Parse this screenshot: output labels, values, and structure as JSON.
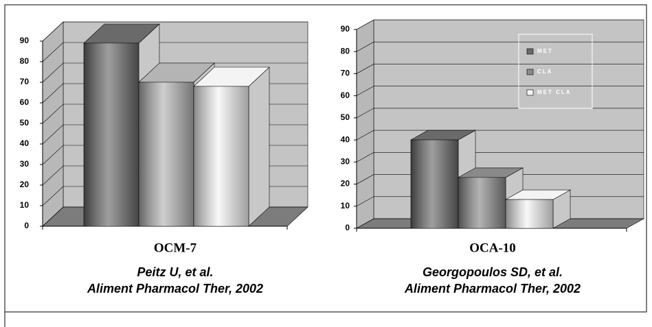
{
  "chart_data": [
    {
      "type": "bar3d",
      "categories": [
        "OCM-7"
      ],
      "series": [
        {
          "color": "#6a6a6a",
          "values": [
            89
          ]
        },
        {
          "color": "#b4b4b4",
          "values": [
            70
          ]
        },
        {
          "color": "#f4f4f4",
          "values": [
            68
          ]
        }
      ],
      "ylim": [
        0,
        90
      ],
      "yticks": [
        0,
        10,
        20,
        30,
        40,
        50,
        60,
        70,
        80,
        90
      ],
      "grid": true,
      "captions": [
        "Peitz U, et al.",
        "Aliment Pharmacol Ther, 2002"
      ]
    },
    {
      "type": "bar3d",
      "categories": [
        "OCA-10"
      ],
      "series": [
        {
          "name": "MET",
          "color": "#6a6a6a",
          "values": [
            40
          ]
        },
        {
          "name": "CLA",
          "color": "#8a8a8a",
          "values": [
            23
          ]
        },
        {
          "name": "MET CLA",
          "color": "#f4f4f4",
          "values": [
            13
          ]
        }
      ],
      "ylim": [
        0,
        90
      ],
      "yticks": [
        0,
        10,
        20,
        30,
        40,
        50,
        60,
        70,
        80,
        90
      ],
      "grid": true,
      "legend": "top-right",
      "captions": [
        "Georgopoulos SD, et al.",
        "Aliment Pharmacol Ther, 2002"
      ]
    }
  ]
}
